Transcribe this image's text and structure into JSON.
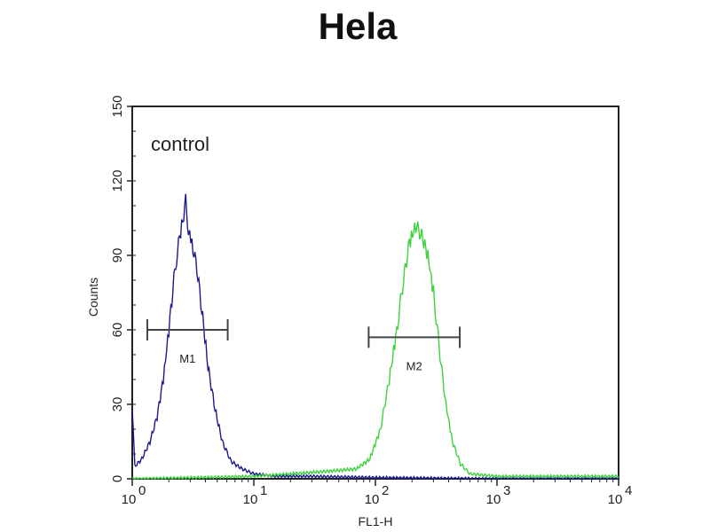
{
  "chart_data": {
    "type": "line",
    "title": "Hela",
    "xlabel": "FL1-H",
    "ylabel": "Counts",
    "x_scale": "log",
    "xlim": [
      1,
      10000
    ],
    "ylim": [
      0,
      150
    ],
    "x_ticks": [
      {
        "base": "10",
        "exp": "0"
      },
      {
        "base": "10",
        "exp": "1"
      },
      {
        "base": "10",
        "exp": "2"
      },
      {
        "base": "10",
        "exp": "3"
      },
      {
        "base": "10",
        "exp": "4"
      }
    ],
    "y_ticks": [
      "0",
      "30",
      "60",
      "90",
      "120",
      "150"
    ],
    "y_tick_values": [
      0,
      30,
      60,
      90,
      120,
      150
    ],
    "annotation": "control",
    "grid": false,
    "series": [
      {
        "color": "#1a1a8c",
        "x": [
          1,
          1.05,
          1.2,
          1.4,
          1.6,
          1.8,
          2.0,
          2.2,
          2.4,
          2.6,
          2.75,
          2.9,
          3.1,
          3.4,
          3.8,
          4.2,
          4.8,
          5.5,
          6.5,
          8,
          10,
          15,
          30,
          100,
          1000,
          10000
        ],
        "y": [
          28,
          5,
          8,
          15,
          25,
          40,
          60,
          80,
          95,
          104,
          112,
          100,
          95,
          85,
          65,
          45,
          28,
          15,
          7,
          4,
          2,
          1,
          1,
          0.5,
          0,
          0
        ]
      },
      {
        "color": "#3fd23f",
        "x": [
          1,
          10,
          20,
          40,
          70,
          90,
          110,
          130,
          150,
          170,
          190,
          215,
          240,
          270,
          300,
          340,
          380,
          430,
          500,
          600,
          1000,
          10000
        ],
        "y": [
          0,
          1,
          2,
          3,
          4,
          8,
          20,
          40,
          60,
          80,
          95,
          102,
          98,
          90,
          75,
          50,
          30,
          15,
          6,
          2,
          1,
          1
        ]
      }
    ],
    "markers": [
      {
        "label": "M1",
        "x_range": [
          1.33,
          6.1
        ],
        "y": 60
      },
      {
        "label": "M2",
        "x_range": [
          88,
          494
        ],
        "y": 57
      }
    ]
  }
}
